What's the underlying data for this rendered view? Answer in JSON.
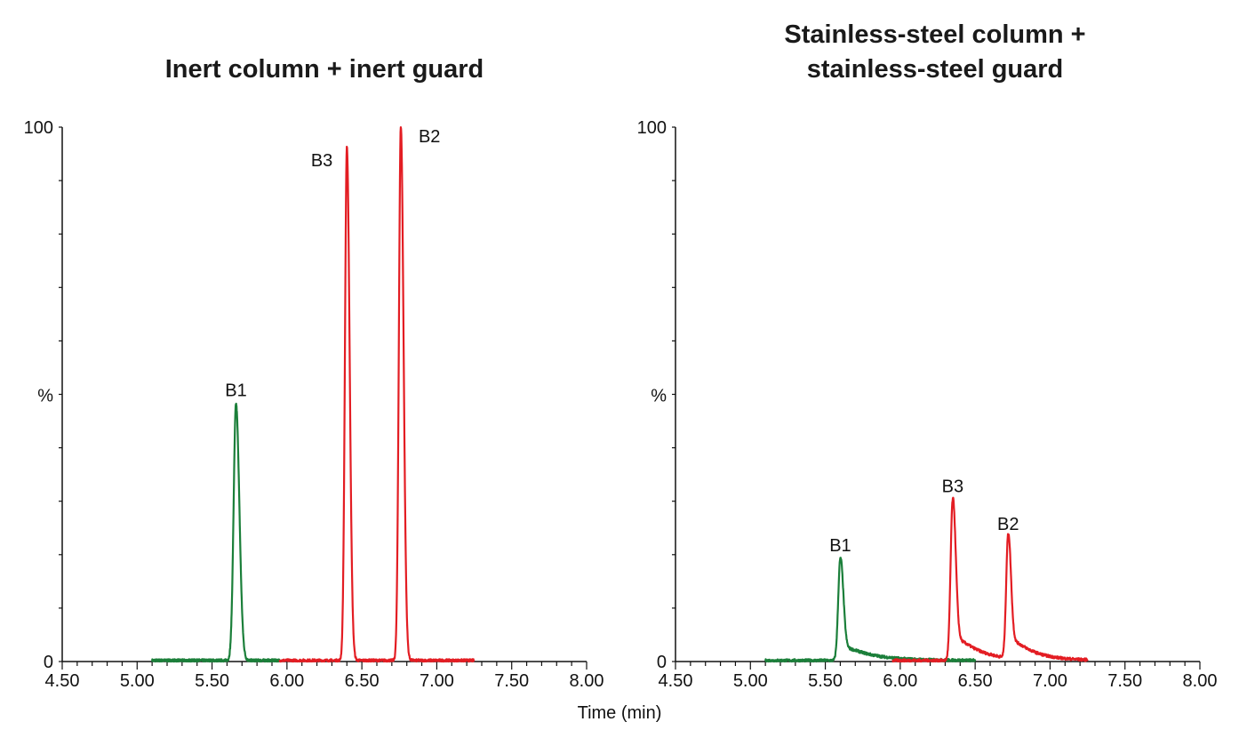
{
  "xlabel": "Time (min)",
  "chart_data": [
    {
      "type": "line",
      "title": "Inert column + inert guard",
      "title_lines": [
        "Inert column + inert guard"
      ],
      "ylabel": "%",
      "xlim": [
        4.5,
        8.0
      ],
      "ylim": [
        0,
        100
      ],
      "x_ticks": [
        "4.50",
        "5.00",
        "5.50",
        "6.00",
        "6.50",
        "7.00",
        "7.50",
        "8.00"
      ],
      "y_ticks": [
        "0",
        "100"
      ],
      "series": [
        {
          "color": "#1b7f3a",
          "start": 5.1,
          "end": 5.95,
          "peaks": [
            {
              "label": "B1",
              "x": 5.66,
              "y": 48,
              "width": 0.016,
              "tail": 0.02,
              "tail_amp": 0.0
            }
          ]
        },
        {
          "color": "#e31d23",
          "start": 5.95,
          "end": 7.25,
          "peaks": [
            {
              "label": "B3",
              "x": 6.4,
              "y": 96,
              "width": 0.013,
              "tail": 0.018,
              "tail_amp": 0.0
            },
            {
              "label": "B2",
              "x": 6.76,
              "y": 100,
              "width": 0.013,
              "tail": 0.018,
              "tail_amp": 0.0
            }
          ]
        }
      ]
    },
    {
      "type": "line",
      "title": "Stainless-steel column + stainless-steel guard",
      "title_lines": [
        "Stainless-steel column +",
        "stainless-steel guard"
      ],
      "ylabel": "%",
      "xlim": [
        4.5,
        8.0
      ],
      "ylim": [
        0,
        100
      ],
      "x_ticks": [
        "4.50",
        "5.00",
        "5.50",
        "6.00",
        "6.50",
        "7.00",
        "7.50",
        "8.00"
      ],
      "y_ticks": [
        "0",
        "100"
      ],
      "series": [
        {
          "color": "#1b7f3a",
          "start": 5.1,
          "end": 6.5,
          "peaks": [
            {
              "label": "B1",
              "x": 5.6,
              "y": 19,
              "width": 0.014,
              "tail": 0.18,
              "tail_amp": 0.18
            }
          ]
        },
        {
          "color": "#e31d23",
          "start": 5.95,
          "end": 7.25,
          "peaks": [
            {
              "label": "B3",
              "x": 6.35,
              "y": 30,
              "width": 0.014,
              "tail": 0.15,
              "tail_amp": 0.2
            },
            {
              "label": "B2",
              "x": 6.72,
              "y": 23,
              "width": 0.013,
              "tail": 0.14,
              "tail_amp": 0.22
            }
          ]
        }
      ]
    }
  ]
}
